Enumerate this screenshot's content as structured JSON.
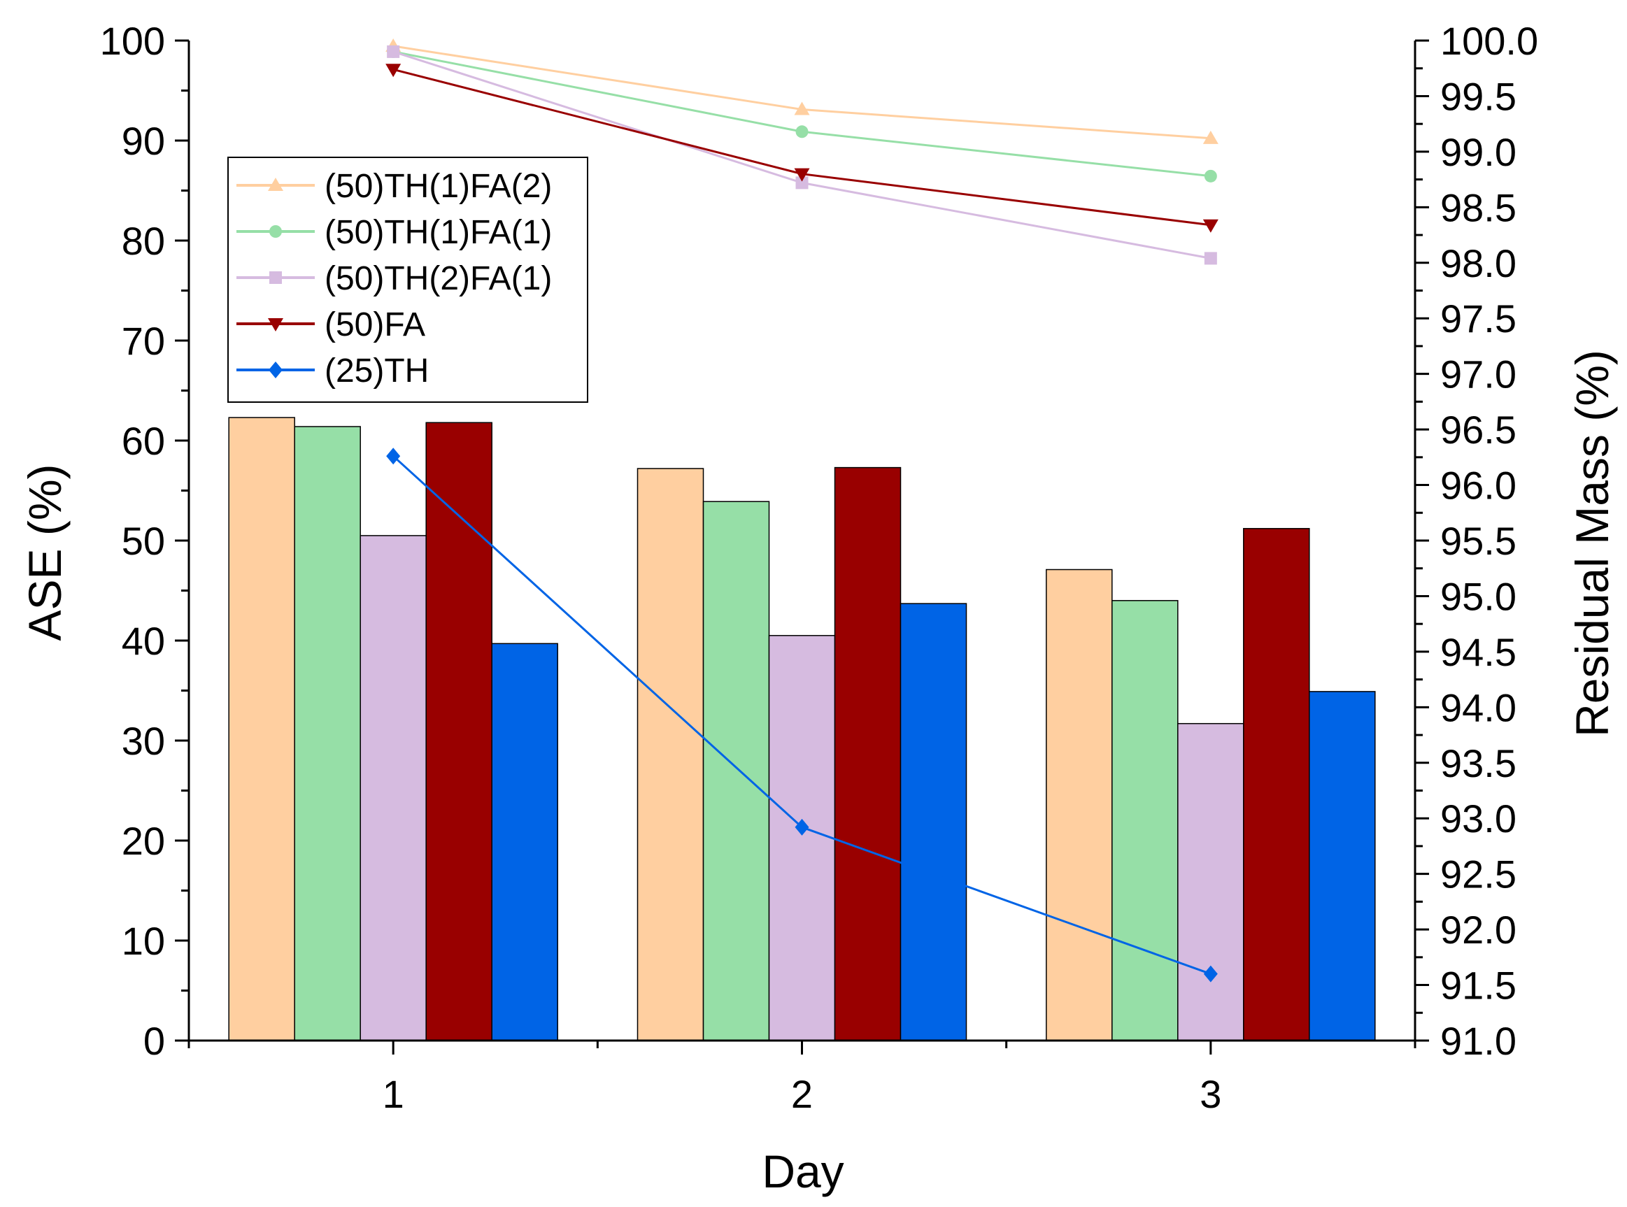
{
  "chart_data": {
    "type": "bar",
    "xlabel": "Day",
    "ylabel": "ASE (%)",
    "y2label": "Residual Mass (%)",
    "categories": [
      "1",
      "2",
      "3"
    ],
    "ylim": [
      0,
      100
    ],
    "y_ticks": [
      "0",
      "10",
      "20",
      "30",
      "40",
      "50",
      "60",
      "70",
      "80",
      "90",
      "100"
    ],
    "y2lim": [
      91.0,
      100.0
    ],
    "y2_ticks": [
      "91.0",
      "91.5",
      "92.0",
      "92.5",
      "93.0",
      "93.5",
      "94.0",
      "94.5",
      "95.0",
      "95.5",
      "96.0",
      "96.5",
      "97.0",
      "97.5",
      "98.0",
      "98.5",
      "99.0",
      "99.5",
      "100.0"
    ],
    "legend_position": "upper-left",
    "series": [
      {
        "name": "(50)TH(1)FA(2)",
        "color": "#FFCFA0",
        "marker": "triangle-up",
        "ase": [
          62.3,
          57.2,
          47.1
        ],
        "residual_mass": [
          99.95,
          99.38,
          99.12
        ]
      },
      {
        "name": "(50)TH(1)FA(1)",
        "color": "#96DFA7",
        "marker": "circle",
        "ase": [
          61.4,
          53.9,
          44.0
        ],
        "residual_mass": [
          99.9,
          99.18,
          98.78
        ]
      },
      {
        "name": "(50)TH(2)FA(1)",
        "color": "#D6BBE0",
        "marker": "square",
        "ase": [
          50.5,
          40.5,
          31.7
        ],
        "residual_mass": [
          99.9,
          98.72,
          98.04
        ]
      },
      {
        "name": "(50)FA",
        "color": "#990000",
        "marker": "triangle-down",
        "ase": [
          61.8,
          57.3,
          51.2
        ],
        "residual_mass": [
          99.74,
          98.8,
          98.34
        ]
      },
      {
        "name": "(25)TH",
        "color": "#0064E6",
        "marker": "diamond",
        "ase": [
          39.7,
          43.7,
          34.9
        ],
        "residual_mass": [
          96.26,
          92.92,
          91.6
        ]
      }
    ]
  }
}
